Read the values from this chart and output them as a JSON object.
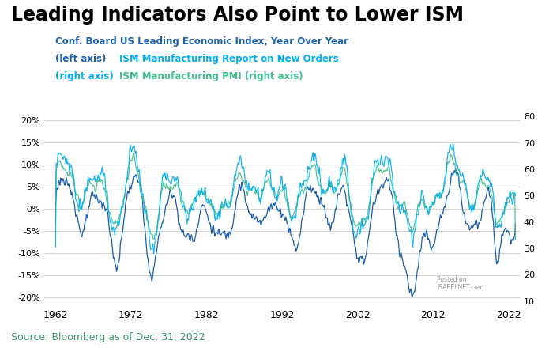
{
  "title": "Leading Indicators Also Point to Lower ISM",
  "source_text": "Source: Bloomberg as of Dec. 31, 2022",
  "lei_color": "#1a5fad",
  "new_orders_color": "#00aeef",
  "pmi_color": "#3dbf8a",
  "left_ylim": [
    -0.22,
    0.22
  ],
  "right_ylim": [
    8,
    82
  ],
  "left_yticks": [
    -0.2,
    -0.15,
    -0.1,
    -0.05,
    0.0,
    0.05,
    0.1,
    0.15,
    0.2
  ],
  "right_yticks": [
    10,
    20,
    30,
    40,
    50,
    60,
    70,
    80
  ],
  "xticks": [
    1962,
    1972,
    1982,
    1992,
    2002,
    2012,
    2022
  ],
  "xlim": [
    1960.5,
    2023.5
  ],
  "background_color": "#ffffff",
  "grid_color": "#cccccc",
  "title_fontsize": 17,
  "source_fontsize": 9,
  "legend_fontsize": 8.5
}
